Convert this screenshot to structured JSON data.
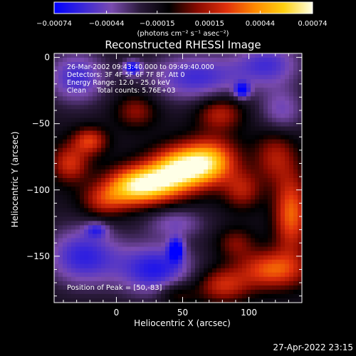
{
  "chart_data": {
    "type": "heatmap",
    "title": "Reconstructed RHESSI Image",
    "xlabel": "Heliocentric X (arcsec)",
    "ylabel": "Heliocentric Y (arcsec)",
    "xlim": [
      -47,
      140
    ],
    "ylim": [
      -185,
      3
    ],
    "x_ticks": [
      0,
      50,
      100
    ],
    "y_ticks": [
      0,
      -50,
      -100,
      -150
    ],
    "x_tick_labels": [
      "0",
      "50",
      "100"
    ],
    "y_tick_labels": [
      "0",
      "−50",
      "−100",
      "−150"
    ],
    "colorbar": {
      "range": [
        -0.00074,
        0.00074
      ],
      "ticks": [
        -0.00074,
        -0.00044,
        -0.00015,
        0.00015,
        0.00044,
        0.00074
      ],
      "tick_labels": [
        "−0.00074",
        "−0.00044",
        "−0.00015",
        "0.00015",
        "0.00044",
        "0.00074"
      ],
      "unit_label": "(photons cm⁻² s⁻¹ asec⁻²)",
      "colors": [
        "#0000ff",
        "#3a27d8",
        "#7a4bb0",
        "#2a1a3a",
        "#000000",
        "#8a0a00",
        "#e0300b",
        "#ff8a00",
        "#ffd010",
        "#ffffe6"
      ]
    },
    "annotations": [
      "26-Mar-2002 09:43:40.000 to 09:49:40.000",
      "Detectors: 3F 4F 5F 6F 7F 8F, Att 0",
      "Energy Range: 12.0 - 25.0 keV",
      "Clean     Total counts: 5.76E+03"
    ],
    "peak": {
      "label": "Position of Peak = [50,-83]",
      "x": 50,
      "y": -83
    },
    "sources": [
      {
        "x": 50,
        "y": -83,
        "amp": 0.00074,
        "sx": 16,
        "sy": 11
      },
      {
        "x": 30,
        "y": -95,
        "amp": 0.00062,
        "sx": 16,
        "sy": 10
      },
      {
        "x": 10,
        "y": -98,
        "amp": 0.00052,
        "sx": 14,
        "sy": 10
      },
      {
        "x": 72,
        "y": -78,
        "amp": 0.00055,
        "sx": 14,
        "sy": 12
      },
      {
        "x": -20,
        "y": -63,
        "amp": 0.0004,
        "sx": 9,
        "sy": 7
      },
      {
        "x": -35,
        "y": -80,
        "amp": 0.00038,
        "sx": 10,
        "sy": 10
      },
      {
        "x": -10,
        "y": -108,
        "amp": 0.00032,
        "sx": 12,
        "sy": 9
      },
      {
        "x": 78,
        "y": -42,
        "amp": 0.00034,
        "sx": 12,
        "sy": 9
      },
      {
        "x": 15,
        "y": -40,
        "amp": 0.00026,
        "sx": 11,
        "sy": 9
      },
      {
        "x": 95,
        "y": -100,
        "amp": 0.0003,
        "sx": 10,
        "sy": 10
      },
      {
        "x": 120,
        "y": -75,
        "amp": 0.0003,
        "sx": 11,
        "sy": 14
      },
      {
        "x": 132,
        "y": -118,
        "amp": 0.0005,
        "sx": 9,
        "sy": 20
      },
      {
        "x": 118,
        "y": -160,
        "amp": 0.00048,
        "sx": 18,
        "sy": 10
      },
      {
        "x": 80,
        "y": -172,
        "amp": 0.00036,
        "sx": 14,
        "sy": 9
      },
      {
        "x": 45,
        "y": -178,
        "amp": 0.00022,
        "sx": 10,
        "sy": 7
      },
      {
        "x": 90,
        "y": -140,
        "amp": 0.00022,
        "sx": 10,
        "sy": 8
      },
      {
        "x": 30,
        "y": -160,
        "amp": -0.00048,
        "sx": 20,
        "sy": 14
      },
      {
        "x": -25,
        "y": -150,
        "amp": -0.00044,
        "sx": 20,
        "sy": 16
      },
      {
        "x": -30,
        "y": -15,
        "amp": -0.0004,
        "sx": 16,
        "sy": 14
      },
      {
        "x": 60,
        "y": -15,
        "amp": -0.0004,
        "sx": 26,
        "sy": 13
      },
      {
        "x": 115,
        "y": -5,
        "amp": -0.00036,
        "sx": 18,
        "sy": 12
      },
      {
        "x": 125,
        "y": -40,
        "amp": -0.00028,
        "sx": 12,
        "sy": 12
      },
      {
        "x": 45,
        "y": -125,
        "amp": -0.00026,
        "sx": 16,
        "sy": 8
      },
      {
        "x": 45,
        "y": -145,
        "amp": -0.00055,
        "sx": 4,
        "sy": 6
      },
      {
        "x": 12,
        "y": -8,
        "amp": -0.0005,
        "sx": 5,
        "sy": 4
      },
      {
        "x": 95,
        "y": -25,
        "amp": -0.0005,
        "sx": 4,
        "sy": 4
      },
      {
        "x": -15,
        "y": -130,
        "amp": -0.0003,
        "sx": 6,
        "sy": 4
      }
    ]
  },
  "footer": {
    "timestamp": "27-Apr-2022 23:15"
  }
}
